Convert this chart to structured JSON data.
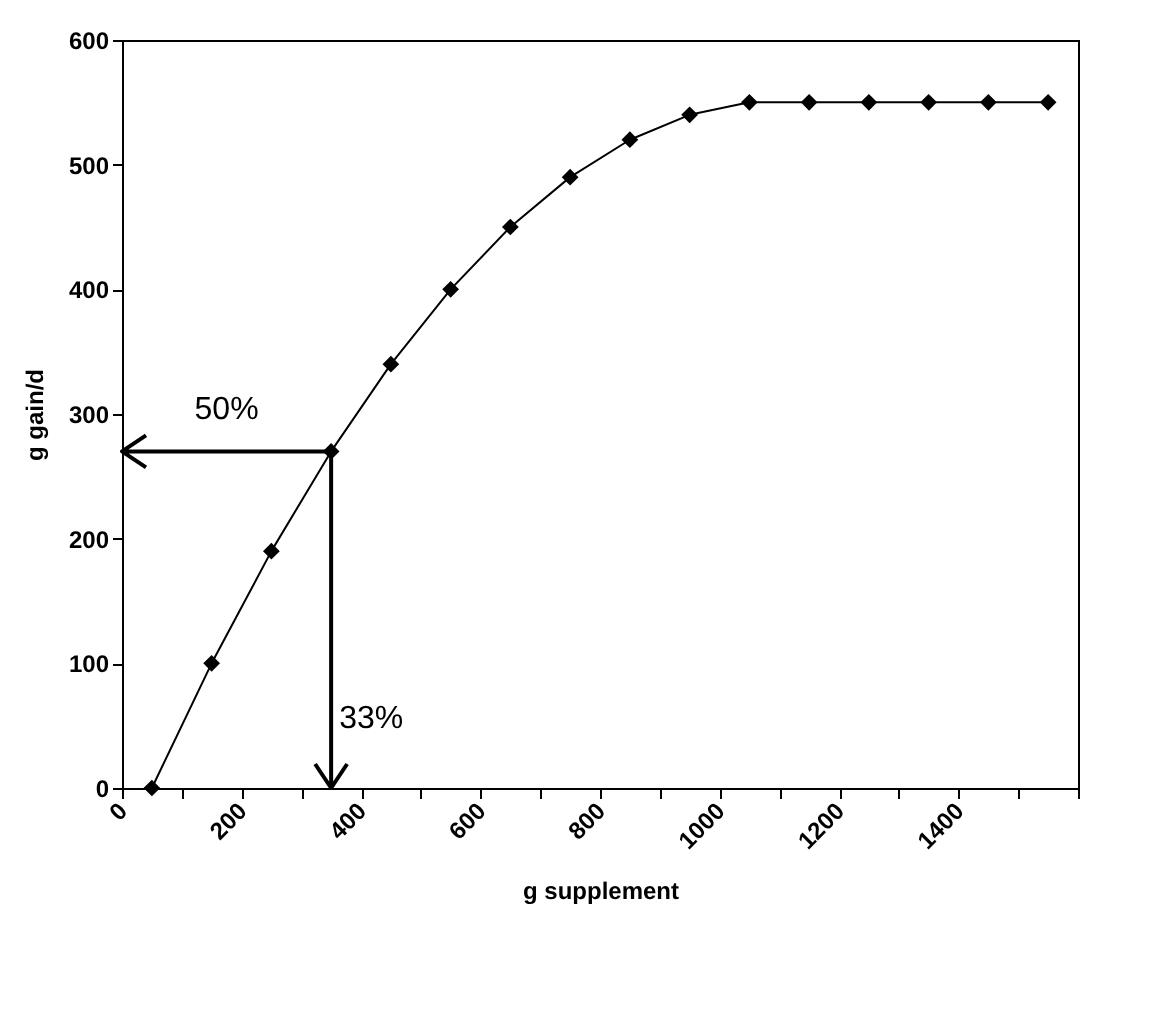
{
  "chart_data": {
    "type": "line",
    "xlabel": "g supplement",
    "ylabel": "g gain/d",
    "x": [
      50,
      150,
      250,
      350,
      450,
      550,
      650,
      750,
      850,
      950,
      1050,
      1150,
      1250,
      1350,
      1450,
      1550
    ],
    "series": [
      {
        "color": "#000000",
        "values": [
          0,
          100,
          190,
          270,
          340,
          400,
          450,
          490,
          520,
          540,
          550,
          550,
          550,
          550,
          550,
          550
        ]
      }
    ],
    "xlim": [
      0,
      1600
    ],
    "xticks": [
      0,
      {
        "value": 100,
        "label": null
      },
      200,
      {
        "value": 300,
        "label": null
      },
      400,
      {
        "value": 500,
        "label": null
      },
      600,
      {
        "value": 700,
        "label": null
      },
      800,
      {
        "value": 900,
        "label": null
      },
      1000,
      {
        "value": 1100,
        "label": null
      },
      1200,
      {
        "value": 1300,
        "label": null
      },
      1400,
      {
        "value": 1500,
        "label": null
      },
      {
        "value": 1600,
        "label": null
      }
    ],
    "ylim": [
      0,
      600
    ],
    "yticks": [
      0,
      100,
      200,
      300,
      400,
      500,
      600
    ],
    "marker": "diamond",
    "line_style": "solid",
    "grid": false,
    "legend": false,
    "annotations": [
      {
        "text": "50%",
        "x": 350,
        "y": 270
      },
      "33%"
    ]
  }
}
